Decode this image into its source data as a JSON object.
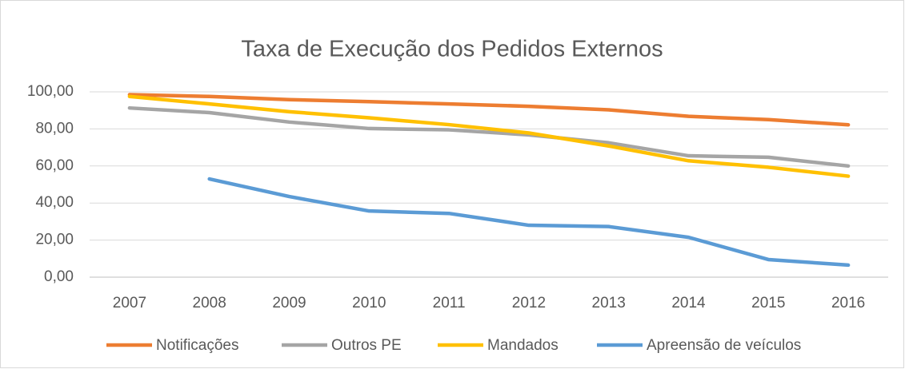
{
  "chart_data": {
    "type": "line",
    "title": "Taxa de Execução dos Pedidos Externos",
    "categories": [
      "2007",
      "2008",
      "2009",
      "2010",
      "2011",
      "2012",
      "2013",
      "2014",
      "2015",
      "2016"
    ],
    "series": [
      {
        "name": "Notificações",
        "color": "#ed7d31",
        "values": [
          98.5,
          97.5,
          95.8,
          94.7,
          93.5,
          92.2,
          90.3,
          86.8,
          85.0,
          82.2
        ]
      },
      {
        "name": "Outros PE",
        "color": "#a5a5a5",
        "values": [
          91.3,
          88.8,
          83.7,
          80.2,
          79.5,
          76.8,
          72.5,
          65.5,
          64.7,
          60.0
        ]
      },
      {
        "name": "Mandados",
        "color": "#ffc000",
        "values": [
          97.5,
          93.5,
          89.3,
          86.0,
          82.3,
          77.8,
          70.8,
          62.8,
          59.3,
          54.5
        ]
      },
      {
        "name": "Apreensão de veículos",
        "color": "#5b9bd5",
        "values": [
          null,
          53.0,
          43.5,
          35.7,
          34.4,
          28.0,
          27.3,
          21.5,
          9.5,
          6.5
        ]
      }
    ],
    "ylim": [
      0,
      100
    ],
    "yticks": [
      {
        "value": 0,
        "label": "0,00"
      },
      {
        "value": 20,
        "label": "20,00"
      },
      {
        "value": 40,
        "label": "40,00"
      },
      {
        "value": 60,
        "label": "60,00"
      },
      {
        "value": 80,
        "label": "80,00"
      },
      {
        "value": 100,
        "label": "100,00"
      }
    ],
    "grid": true,
    "legend": "bottom"
  }
}
